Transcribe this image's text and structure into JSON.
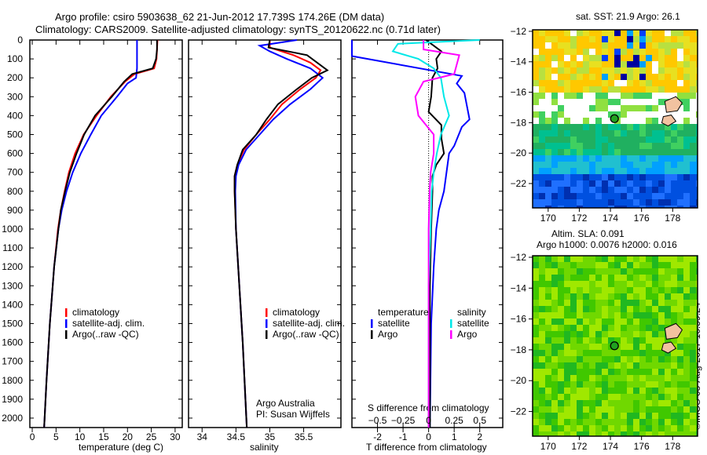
{
  "title_line1": "Argo profile: csiro 5903638_62 21-Jun-2012 17.739S 174.26E (DM data)",
  "title_line2": "Climatology: CARS2009. Satellite-adjusted climatology: synTS_20120622.nc (0.71d later)",
  "credit": "©IMOS 03-Aug-2017 16:59:24",
  "colors": {
    "climatology": "#ff0000",
    "satellite": "#0000ff",
    "argo": "#000000",
    "s_satellite": "#00e8e8",
    "s_argo": "#ff00ff"
  },
  "chart_data": [
    {
      "type": "line",
      "id": "temperature",
      "xlabel": "temperature (deg C)",
      "ylabel": "depth",
      "xlim": [
        -0.5,
        31.5
      ],
      "ylim": [
        2050,
        0
      ],
      "xticks": [
        0,
        5,
        10,
        15,
        20,
        25,
        30
      ],
      "yticks": [
        0,
        100,
        200,
        300,
        400,
        500,
        600,
        700,
        800,
        900,
        1000,
        1100,
        1200,
        1300,
        1400,
        1500,
        1600,
        1700,
        1800,
        1900,
        2000
      ],
      "legend": [
        "climatology",
        "satellite-adj. clim.",
        "Argo(..raw -QC)"
      ],
      "series": [
        {
          "name": "climatology",
          "color": "#ff0000",
          "depth": [
            0,
            50,
            100,
            150,
            180,
            220,
            300,
            400,
            500,
            600,
            700,
            800,
            900,
            1000,
            1200,
            1500,
            1800,
            2050
          ],
          "values": [
            26.3,
            26.2,
            26.1,
            25.6,
            21.5,
            19.5,
            16.5,
            13.5,
            10.8,
            9.0,
            7.7,
            6.8,
            6.0,
            5.4,
            4.6,
            3.7,
            3.0,
            2.5
          ]
        },
        {
          "name": "satellite-adj. clim.",
          "color": "#0000ff",
          "depth": [
            0,
            50,
            100,
            150,
            200,
            230,
            300,
            400,
            500,
            600,
            700,
            800,
            900,
            1000,
            1200,
            1500,
            1800,
            2050
          ],
          "values": [
            22.0,
            22.0,
            22.0,
            22.0,
            21.8,
            20.0,
            17.8,
            14.5,
            12.3,
            10.2,
            8.5,
            7.2,
            6.2,
            5.5,
            4.6,
            3.7,
            3.0,
            2.5
          ]
        },
        {
          "name": "Argo(..raw -QC)",
          "color": "#000000",
          "depth": [
            0,
            50,
            100,
            150,
            180,
            220,
            300,
            400,
            500,
            600,
            700,
            800,
            900,
            1000,
            1200,
            1500,
            1800,
            2050
          ],
          "values": [
            26.2,
            26.2,
            26.0,
            25.3,
            21.0,
            19.3,
            16.7,
            13.2,
            10.9,
            9.3,
            7.9,
            6.9,
            6.0,
            5.5,
            4.6,
            3.7,
            3.0,
            2.5
          ]
        }
      ]
    },
    {
      "type": "line",
      "id": "salinity",
      "xlabel": "salinity",
      "ylabel": "depth",
      "xlim": [
        33.8,
        36.05
      ],
      "ylim": [
        2050,
        0
      ],
      "xticks": [
        34,
        34.5,
        35,
        35.5
      ],
      "legend": [
        "climatology",
        "satellite-adj. clim.",
        "Argo(..raw -QC)"
      ],
      "annotation": [
        "Argo Australia",
        "PI: Susan Wijffels"
      ],
      "series": [
        {
          "name": "climatology",
          "color": "#ff0000",
          "depth": [
            0,
            40,
            80,
            120,
            160,
            200,
            260,
            340,
            420,
            500,
            580,
            660,
            720,
            800,
            1000,
            1300,
            1600,
            2050
          ],
          "values": [
            35.0,
            35.0,
            35.35,
            35.6,
            35.75,
            35.68,
            35.45,
            35.18,
            35.0,
            34.8,
            34.62,
            34.52,
            34.48,
            34.48,
            34.5,
            34.55,
            34.6,
            34.66
          ]
        },
        {
          "name": "satellite-adj. clim.",
          "color": "#0000ff",
          "depth": [
            0,
            30,
            60,
            100,
            150,
            200,
            260,
            340,
            420,
            500,
            580,
            660,
            720,
            800,
            1000,
            1300,
            1600,
            2050
          ],
          "values": [
            35.4,
            34.85,
            35.0,
            35.25,
            35.6,
            35.78,
            35.6,
            35.3,
            35.05,
            34.85,
            34.65,
            34.54,
            34.5,
            34.49,
            34.5,
            34.55,
            34.6,
            34.66
          ]
        },
        {
          "name": "Argo(..raw -QC)",
          "color": "#000000",
          "depth": [
            0,
            40,
            80,
            120,
            160,
            200,
            260,
            340,
            420,
            500,
            580,
            660,
            720,
            800,
            1000,
            1300,
            1600,
            2050
          ],
          "values": [
            35.0,
            34.98,
            35.55,
            35.7,
            35.85,
            35.62,
            35.4,
            35.12,
            34.95,
            34.8,
            34.6,
            34.52,
            34.48,
            34.48,
            34.5,
            34.55,
            34.6,
            34.66
          ]
        }
      ]
    },
    {
      "type": "line",
      "id": "difference",
      "xlabel": "T difference from climatology",
      "x2label": "S difference from climatology",
      "ylabel": "depth",
      "xlim": [
        -3.0,
        2.9
      ],
      "x2lim": [
        -0.75,
        0.725
      ],
      "ylim": [
        2050,
        0
      ],
      "xticks": [
        -2,
        -1,
        0,
        1,
        2
      ],
      "x2ticks": [
        -0.5,
        -0.25,
        0,
        0.25,
        0.5
      ],
      "legend_temperature": {
        "title": "temperature",
        "items": [
          "satellite",
          "Argo"
        ]
      },
      "legend_salinity": {
        "title": "salinity",
        "items": [
          "satellite",
          "Argo"
        ]
      },
      "series": [
        {
          "name": "temperature satellite",
          "axis": "T",
          "color": "#0000ff",
          "depth": [
            0,
            85,
            190,
            230,
            280,
            350,
            420,
            460,
            560,
            600,
            700,
            800,
            900,
            1000,
            1200,
            1500,
            2050
          ],
          "values": [
            -3.0,
            -3.0,
            1.3,
            1.1,
            1.4,
            1.5,
            1.6,
            1.3,
            1.0,
            0.8,
            0.7,
            0.6,
            0.4,
            0.3,
            0.2,
            0.1,
            0.05
          ]
        },
        {
          "name": "temperature Argo",
          "axis": "T",
          "color": "#000000",
          "depth": [
            0,
            20,
            60,
            100,
            150,
            200,
            300,
            380,
            450,
            520,
            600,
            660,
            720,
            800,
            1000,
            1300,
            1600,
            2050
          ],
          "values": [
            -0.1,
            0.1,
            0.5,
            0.3,
            0.35,
            0.15,
            0.1,
            0.0,
            0.5,
            0.5,
            0.6,
            0.3,
            0.15,
            0.15,
            0.1,
            0.05,
            0.05,
            0.05
          ]
        },
        {
          "name": "salinity satellite",
          "axis": "S",
          "color": "#00e8e8",
          "depth": [
            0,
            20,
            60,
            100,
            150,
            200,
            300,
            400,
            500,
            600,
            700,
            800,
            1000,
            1300,
            1600,
            2050
          ],
          "values": [
            0.5,
            -0.3,
            -0.35,
            -0.1,
            0.05,
            0.12,
            0.15,
            0.2,
            0.12,
            0.08,
            0.05,
            0.03,
            0.02,
            0.0,
            0.0,
            0.0
          ]
        },
        {
          "name": "salinity Argo",
          "axis": "S",
          "color": "#ff00ff",
          "depth": [
            0,
            50,
            80,
            120,
            180,
            220,
            300,
            400,
            500,
            600,
            700,
            800,
            1000,
            1300,
            1600,
            2050
          ],
          "values": [
            -0.05,
            -0.05,
            0.3,
            0.28,
            0.25,
            -0.05,
            -0.13,
            -0.1,
            0.05,
            0.05,
            0.02,
            0.01,
            0.0,
            0.0,
            0.0,
            0.0
          ]
        }
      ]
    },
    {
      "type": "heatmap",
      "id": "sst_map",
      "title": "sat. SST: 21.9 Argo: 26.1",
      "xticks": [
        170,
        172,
        174,
        176,
        178
      ],
      "yticks": [
        -12,
        -14,
        -16,
        -18,
        -20,
        -22
      ],
      "xlim": [
        169,
        179.6
      ],
      "ylim": [
        -23.6,
        -11.9
      ],
      "marker": [
        174.26,
        -17.739
      ]
    },
    {
      "type": "heatmap",
      "id": "sla_map",
      "title": "Altim. SLA: 0.091",
      "subtitle": "Argo h1000: 0.0076 h2000: 0.016",
      "xticks": [
        170,
        172,
        174,
        176,
        178
      ],
      "yticks": [
        -12,
        -14,
        -16,
        -18,
        -20,
        -22
      ],
      "xlim": [
        169,
        179.6
      ],
      "ylim": [
        -23.6,
        -11.9
      ],
      "marker": [
        174.26,
        -17.739
      ]
    }
  ]
}
